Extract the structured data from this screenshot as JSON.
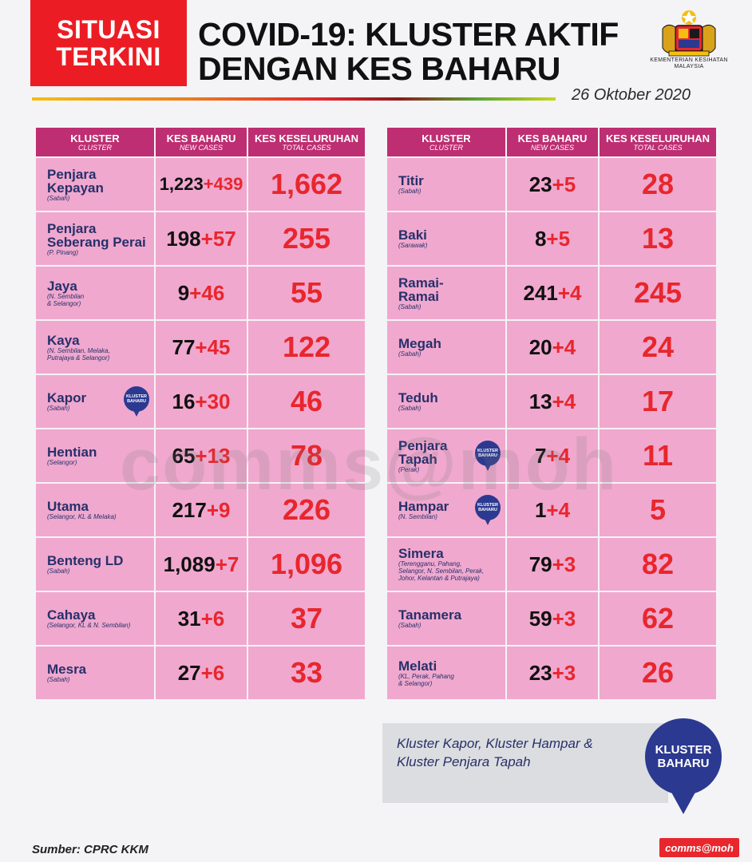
{
  "header": {
    "badge_line1": "SITUASI",
    "badge_line2": "TERKINI",
    "title_line1": "COVID-19: KLUSTER AKTIF",
    "title_line2": "DENGAN KES BAHARU",
    "ministry_line1": "KEMENTERIAN KESIHATAN",
    "ministry_line2": "MALAYSIA",
    "date": "26 Oktober 2020"
  },
  "columns": {
    "cluster": "KLUSTER",
    "cluster_sub": "CLUSTER",
    "new": "KES BAHARU",
    "new_sub": "NEW CASES",
    "total": "KES KESELURUHAN",
    "total_sub": "TOTAL CASES"
  },
  "pin_small": {
    "line1": "KLUSTER",
    "line2": "BAHARU"
  },
  "left_rows": [
    {
      "name1": "Penjara",
      "name2": "Kepayan",
      "region1": "(Sabah)",
      "region2": "",
      "region3": "",
      "base": "1,223",
      "plus": "+439",
      "total": "1,662"
    },
    {
      "name1": "Penjara",
      "name2": "Seberang Perai",
      "region1": "(P. Pinang)",
      "region2": "",
      "region3": "",
      "base": "198",
      "plus": "+57",
      "total": "255"
    },
    {
      "name1": "Jaya",
      "name2": "",
      "region1": "(N. Sembilan",
      "region2": "& Selangor)",
      "region3": "",
      "base": "9",
      "plus": "+46",
      "total": "55"
    },
    {
      "name1": "Kaya",
      "name2": "",
      "region1": "(N. Sembilan, Melaka,",
      "region2": "Putrajaya & Selangor)",
      "region3": "",
      "base": "77",
      "plus": "+45",
      "total": "122"
    },
    {
      "name1": "Kapor",
      "name2": "",
      "region1": "(Sabah)",
      "region2": "",
      "region3": "",
      "base": "16",
      "plus": "+30",
      "total": "46",
      "pin": true
    },
    {
      "name1": "Hentian",
      "name2": "",
      "region1": "(Selangor)",
      "region2": "",
      "region3": "",
      "base": "65",
      "plus": "+13",
      "total": "78"
    },
    {
      "name1": "Utama",
      "name2": "",
      "region1": "(Selangor, KL & Melaka)",
      "region2": "",
      "region3": "",
      "base": "217",
      "plus": "+9",
      "total": "226"
    },
    {
      "name1": "Benteng LD",
      "name2": "",
      "region1": "(Sabah)",
      "region2": "",
      "region3": "",
      "base": "1,089",
      "plus": "+7",
      "total": "1,096"
    },
    {
      "name1": "Cahaya",
      "name2": "",
      "region1": "(Selangor, KL & N. Sembilan)",
      "region2": "",
      "region3": "",
      "base": "31",
      "plus": "+6",
      "total": "37"
    },
    {
      "name1": "Mesra",
      "name2": "",
      "region1": "(Sabah)",
      "region2": "",
      "region3": "",
      "base": "27",
      "plus": "+6",
      "total": "33"
    }
  ],
  "right_rows": [
    {
      "name1": "Titir",
      "name2": "",
      "region1": "(Sabah)",
      "region2": "",
      "region3": "",
      "base": "23",
      "plus": "+5",
      "total": "28"
    },
    {
      "name1": "Baki",
      "name2": "",
      "region1": "(Sarawak)",
      "region2": "",
      "region3": "",
      "base": "8",
      "plus": "+5",
      "total": "13"
    },
    {
      "name1": "Ramai-",
      "name2": "Ramai",
      "region1": "(Sabah)",
      "region2": "",
      "region3": "",
      "base": "241",
      "plus": "+4",
      "total": "245"
    },
    {
      "name1": "Megah",
      "name2": "",
      "region1": "(Sabah)",
      "region2": "",
      "region3": "",
      "base": "20",
      "plus": "+4",
      "total": "24"
    },
    {
      "name1": "Teduh",
      "name2": "",
      "region1": "(Sabah)",
      "region2": "",
      "region3": "",
      "base": "13",
      "plus": "+4",
      "total": "17"
    },
    {
      "name1": "Penjara",
      "name2": "Tapah",
      "region1": "(Perak)",
      "region2": "",
      "region3": "",
      "base": "7",
      "plus": "+4",
      "total": "11",
      "pin": true
    },
    {
      "name1": "Hampar",
      "name2": "",
      "region1": "(N. Sembilan)",
      "region2": "",
      "region3": "",
      "base": "1",
      "plus": "+4",
      "total": "5",
      "pin": true
    },
    {
      "name1": "Simera",
      "name2": "",
      "region1": "(Terengganu, Pahang,",
      "region2": "Selangor, N. Sembilan, Perak,",
      "region3": "Johor, Kelantan & Putrajaya)",
      "base": "79",
      "plus": "+3",
      "total": "82"
    },
    {
      "name1": "Tanamera",
      "name2": "",
      "region1": "(Sabah)",
      "region2": "",
      "region3": "",
      "base": "59",
      "plus": "+3",
      "total": "62"
    },
    {
      "name1": "Melati",
      "name2": "",
      "region1": "(KL, Perak, Pahang",
      "region2": "& Selangor)",
      "region3": "",
      "base": "23",
      "plus": "+3",
      "total": "26"
    }
  ],
  "note": {
    "line1": "Kluster Kapor, Kluster Hampar &",
    "line2": "Kluster Penjara Tapah"
  },
  "pin_big": {
    "line1": "KLUSTER",
    "line2": "BAHARU"
  },
  "watermark": "comms@moh",
  "footer": {
    "source": "Sumber: CPRC KKM",
    "brand": "comms@moh"
  }
}
